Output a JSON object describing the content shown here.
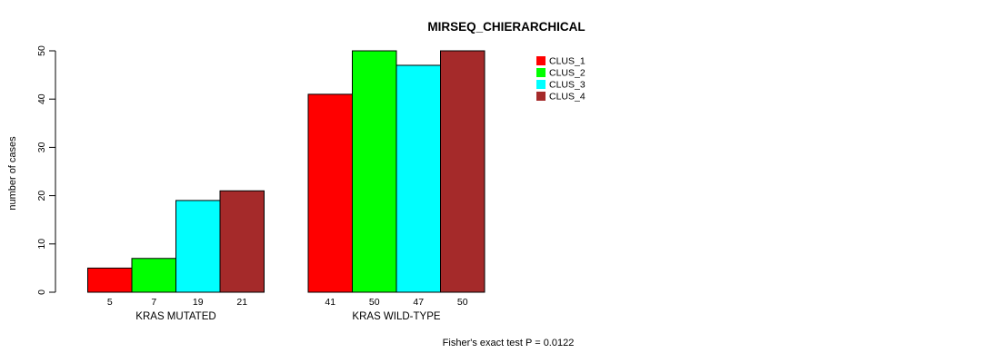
{
  "title": "MIRSEQ_CHIERARCHICAL",
  "ylabel": "number of cases",
  "footer": "Fisher's exact test P = 0.0122",
  "chart_data": {
    "type": "bar",
    "title": "MIRSEQ_CHIERARCHICAL",
    "xlabel": "",
    "ylabel": "number of cases",
    "categories": [
      "KRAS MUTATED",
      "KRAS WILD-TYPE"
    ],
    "series": [
      {
        "name": "CLUS_1",
        "color": "#ff0000",
        "values": [
          5,
          41
        ]
      },
      {
        "name": "CLUS_2",
        "color": "#00ff00",
        "values": [
          7,
          50
        ]
      },
      {
        "name": "CLUS_3",
        "color": "#00ffff",
        "values": [
          19,
          47
        ]
      },
      {
        "name": "CLUS_4",
        "color": "#a52a2a",
        "values": [
          21,
          50
        ]
      }
    ],
    "ylim": [
      0,
      50
    ],
    "yticks": [
      0,
      10,
      20,
      30,
      40,
      50
    ],
    "grid": false,
    "legend_position": "inside-top-right",
    "bar_value_labels_shown": true,
    "annotation": "Fisher's exact test P = 0.0122"
  }
}
